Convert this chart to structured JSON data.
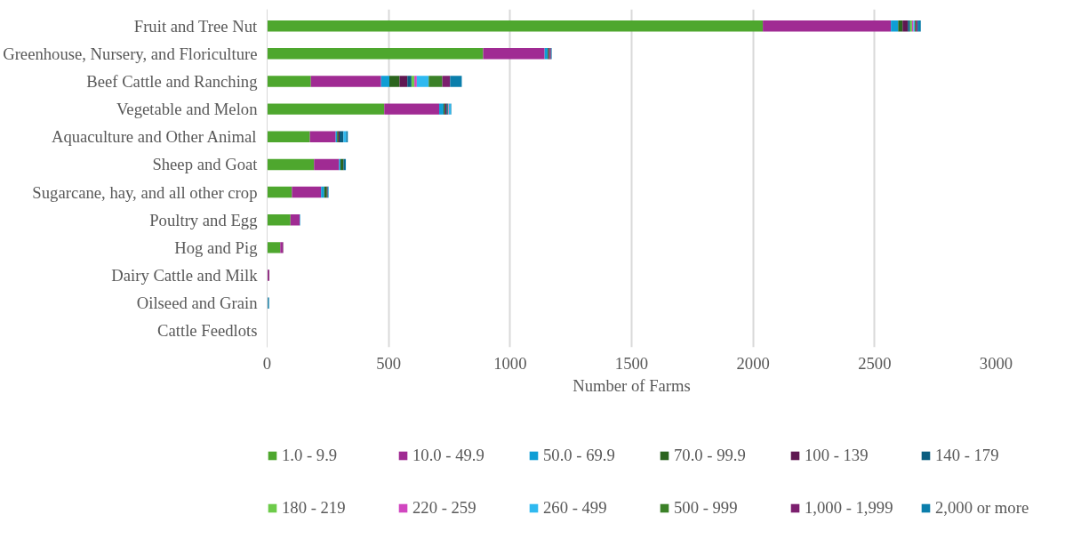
{
  "chart_data": {
    "type": "bar",
    "orientation": "horizontal",
    "stacked": true,
    "categories": [
      "Fruit and Tree Nut",
      "Greenhouse, Nursery, and Floriculture",
      "Beef Cattle and Ranching",
      "Vegetable and Melon",
      "Aquaculture and Other Animal",
      "Sheep and Goat",
      "Sugarcane, hay, and all other crop",
      "Poultry and Egg",
      "Hog and Pig",
      "Dairy Cattle and Milk",
      "Oilseed and Grain",
      "Cattle Feedlots"
    ],
    "xlabel": "Number of Farms",
    "xlim": [
      0,
      3000
    ],
    "xticks": [
      0,
      500,
      1000,
      1500,
      2000,
      2500,
      3000
    ],
    "grid": "x",
    "legend": "bottom",
    "series": [
      {
        "name": "1.0 - 9.9",
        "color": "#4ea72e",
        "values": [
          2040,
          889,
          180,
          482,
          176,
          193,
          102,
          96,
          54,
          0,
          0,
          0
        ]
      },
      {
        "name": "10.0 - 49.9",
        "color": "#a02b93",
        "values": [
          527,
          253,
          289,
          226,
          106,
          103,
          120,
          38,
          10,
          5,
          0,
          0
        ]
      },
      {
        "name": "50.0 - 69.9",
        "color": "#0f9ed5",
        "values": [
          30,
          13,
          34,
          18,
          6,
          6,
          13,
          2,
          0,
          null,
          null,
          0
        ]
      },
      {
        "name": "70.0 - 99.9",
        "color": "#2b641e",
        "values": [
          18,
          4,
          42,
          6,
          6,
          12,
          11,
          0,
          0,
          0,
          0,
          0
        ]
      },
      {
        "name": "100 - 139",
        "color": "#5f1751",
        "values": [
          22,
          4,
          32,
          6,
          4,
          0,
          3,
          0,
          2,
          0,
          0,
          0
        ]
      },
      {
        "name": "140 - 179",
        "color": "#0b5e80",
        "values": [
          9,
          0,
          17,
          6,
          16,
          6,
          3,
          0,
          0,
          0,
          4,
          0
        ]
      },
      {
        "name": "180 - 219",
        "color": "#6dcb4a",
        "values": [
          8,
          0,
          12,
          2,
          0,
          0,
          0,
          0,
          0,
          0,
          0,
          0
        ]
      },
      {
        "name": "220 - 259",
        "color": "#d146c0",
        "values": [
          6,
          0,
          10,
          2,
          0,
          0,
          0,
          0,
          0,
          0,
          0,
          0
        ]
      },
      {
        "name": "260 - 499",
        "color": "#2fb9f0",
        "values": [
          5,
          0,
          49,
          8,
          11,
          0,
          2,
          0,
          0,
          0,
          0,
          0
        ]
      },
      {
        "name": "500 - 999",
        "color": "#3b8128",
        "values": [
          5,
          0,
          56,
          0,
          0,
          0,
          0,
          0,
          0,
          0,
          0,
          0
        ]
      },
      {
        "name": "1,000 - 1,999",
        "color": "#7c1f6e",
        "values": [
          7,
          5,
          32,
          0,
          0,
          0,
          0,
          0,
          0,
          4,
          0,
          0
        ]
      },
      {
        "name": "2,000 or more",
        "color": "#0b7eab",
        "values": [
          13,
          3,
          48,
          2,
          7,
          4,
          0,
          0,
          0,
          0,
          4,
          0
        ]
      }
    ]
  }
}
